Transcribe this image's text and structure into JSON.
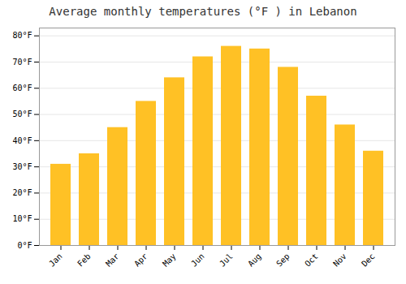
{
  "chart_data": {
    "type": "bar",
    "title": "Average monthly temperatures (°F ) in Lebanon",
    "categories": [
      "Jan",
      "Feb",
      "Mar",
      "Apr",
      "May",
      "Jun",
      "Jul",
      "Aug",
      "Sep",
      "Oct",
      "Nov",
      "Dec"
    ],
    "values": [
      31,
      35,
      45,
      55,
      64,
      72,
      76,
      75,
      68,
      57,
      46,
      36
    ],
    "color": "#FFC125",
    "ylim": [
      0,
      83
    ],
    "yticks": [
      {
        "value": 0,
        "label": "0°F"
      },
      {
        "value": 10,
        "label": "10°F"
      },
      {
        "value": 20,
        "label": "20°F"
      },
      {
        "value": 30,
        "label": "30°F"
      },
      {
        "value": 40,
        "label": "40°F"
      },
      {
        "value": 50,
        "label": "50°F"
      },
      {
        "value": 60,
        "label": "60°F"
      },
      {
        "value": 70,
        "label": "70°F"
      },
      {
        "value": 80,
        "label": "80°F"
      }
    ],
    "grid": true
  }
}
